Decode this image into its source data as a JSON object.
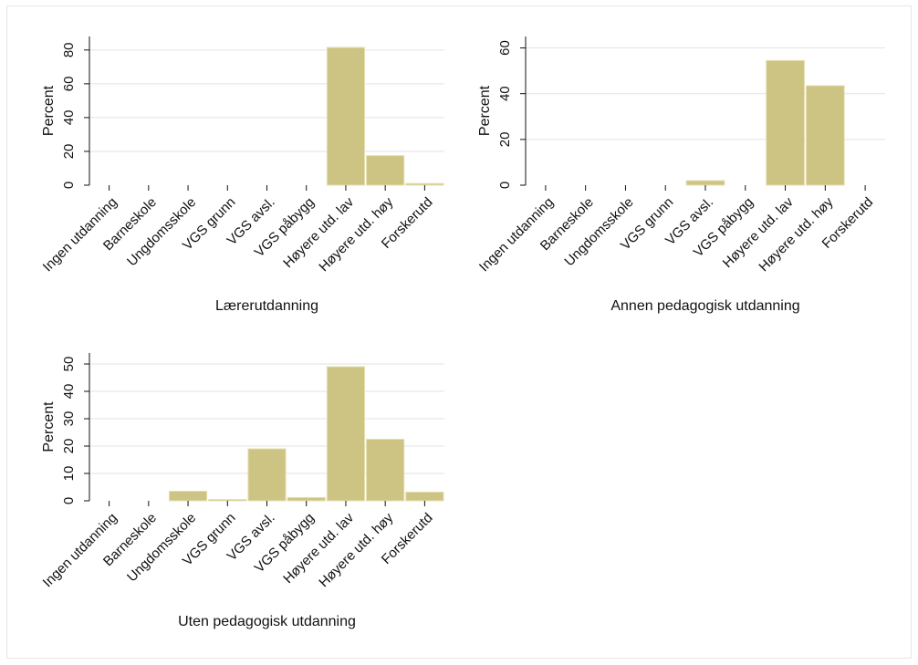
{
  "chart_data": [
    {
      "type": "bar",
      "title": "Lærerutdanning",
      "ylabel": "Percent",
      "xlabel": "",
      "categories": [
        "Ingen utdanning",
        "Barneskole",
        "Ungdomsskole",
        "VGS grunn",
        "VGS avsl.",
        "VGS påbygg",
        "Høyere utd. lav",
        "Høyere utd. høy",
        "Forskerutd"
      ],
      "values": [
        0,
        0,
        0,
        0,
        0,
        0,
        81.5,
        17.5,
        1
      ],
      "ylim": [
        0,
        88
      ],
      "yticks": [
        0,
        20,
        40,
        60,
        80
      ],
      "grid": true
    },
    {
      "type": "bar",
      "title": "Annen pedagogisk utdanning",
      "ylabel": "Percent",
      "xlabel": "",
      "categories": [
        "Ingen utdanning",
        "Barneskole",
        "Ungdomsskole",
        "VGS grunn",
        "VGS avsl.",
        "VGS påbygg",
        "Høyere utd. lav",
        "Høyere utd. høy",
        "Forskerutd"
      ],
      "values": [
        0,
        0,
        0,
        0,
        2,
        0,
        54.5,
        43.5,
        0
      ],
      "ylim": [
        0,
        65
      ],
      "yticks": [
        0,
        20,
        40,
        60
      ],
      "grid": true
    },
    {
      "type": "bar",
      "title": "Uten pedagogisk utdanning",
      "ylabel": "Percent",
      "xlabel": "",
      "categories": [
        "Ingen utdanning",
        "Barneskole",
        "Ungdomsskole",
        "VGS grunn",
        "VGS avsl.",
        "VGS påbygg",
        "Høyere utd. lav",
        "Høyere utd. høy",
        "Forskerutd"
      ],
      "values": [
        0,
        0,
        3.5,
        0.5,
        19,
        1.2,
        49,
        22.5,
        3.2
      ],
      "ylim": [
        0,
        54
      ],
      "yticks": [
        0,
        10,
        20,
        30,
        40,
        50
      ],
      "grid": true
    }
  ],
  "colors": {
    "bar_fill": "#cdc383",
    "bar_edge": "#e6e0b4",
    "grid": "#e3e3e3",
    "axis": "#111111"
  }
}
